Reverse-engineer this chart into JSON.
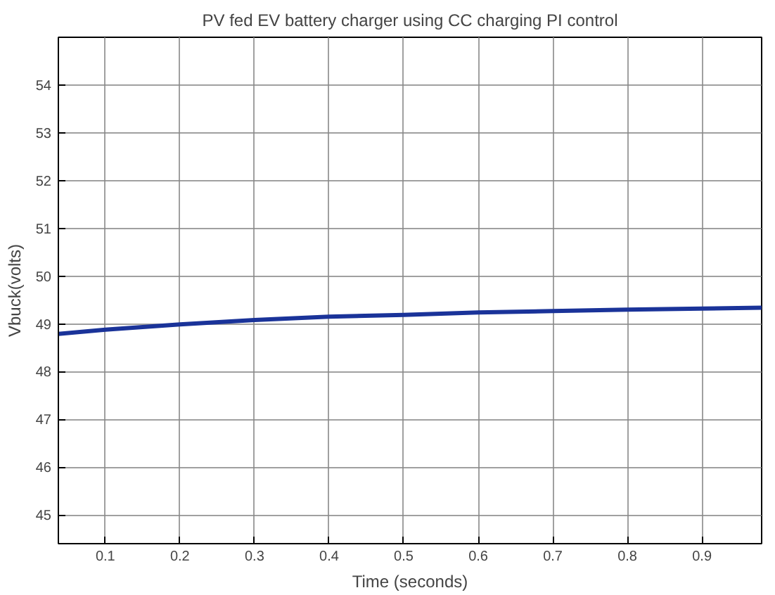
{
  "chart_data": {
    "type": "line",
    "title": "PV fed EV battery charger using CC charging PI control",
    "xlabel": "Time (seconds)",
    "ylabel": "Vbuck(volts)",
    "xlim": [
      0.037,
      0.98
    ],
    "xticks": [
      0.1,
      0.2,
      0.3,
      0.4,
      0.5,
      0.6,
      0.7,
      0.8,
      0.9
    ],
    "ylim": [
      44.4,
      55
    ],
    "yticks": [
      45,
      46,
      47,
      48,
      49,
      50,
      51,
      52,
      53,
      54
    ],
    "grid": true,
    "x": [
      0.037,
      0.1,
      0.2,
      0.3,
      0.4,
      0.5,
      0.6,
      0.7,
      0.8,
      0.9,
      0.98
    ],
    "series": [
      {
        "color": "#1a3399",
        "values": [
          48.79,
          48.88,
          48.99,
          49.08,
          49.15,
          49.19,
          49.24,
          49.27,
          49.3,
          49.32,
          49.34
        ]
      }
    ]
  }
}
